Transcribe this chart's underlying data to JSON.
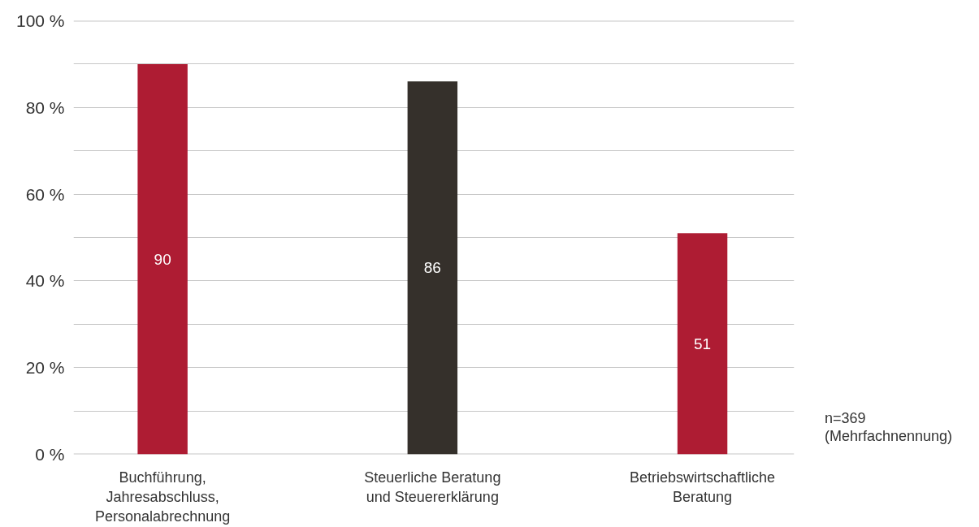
{
  "chart_data": {
    "type": "bar",
    "categories": [
      "Buchführung,\nJahresabschluss,\nPersonalabrechnung",
      "Steuerliche Beratung\nund Steuererklärung",
      "Betriebswirtschaftliche\nBeratung"
    ],
    "values": [
      90,
      86,
      51
    ],
    "colors": [
      "#ae1c33",
      "#35302b",
      "#ae1c33"
    ],
    "ylim": [
      0,
      100
    ],
    "yticks": [
      {
        "value": 0,
        "label": "0 %"
      },
      {
        "value": 10,
        "label": null
      },
      {
        "value": 20,
        "label": "20 %"
      },
      {
        "value": 30,
        "label": null
      },
      {
        "value": 40,
        "label": "40 %"
      },
      {
        "value": 50,
        "label": null
      },
      {
        "value": 60,
        "label": "60 %"
      },
      {
        "value": 70,
        "label": null
      },
      {
        "value": 80,
        "label": "80 %"
      },
      {
        "value": 90,
        "label": null
      },
      {
        "value": 100,
        "label": "100 %"
      }
    ],
    "grid": "y",
    "data_labels": true,
    "annotations": [
      "n=369\n(Mehrfachnennung)"
    ]
  }
}
